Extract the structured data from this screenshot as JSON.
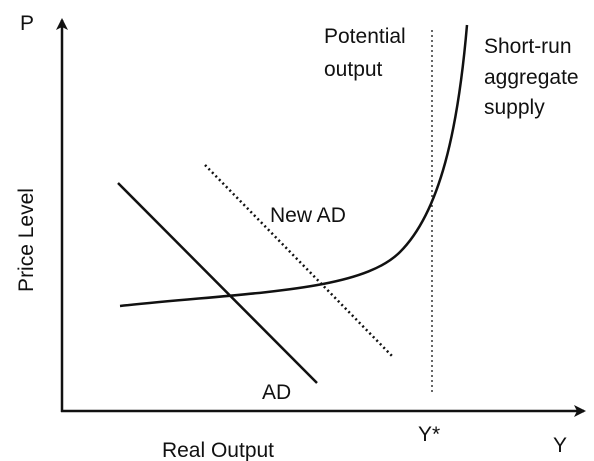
{
  "axes": {
    "y_label": "P",
    "x_label": "Y",
    "y_title": "Price Level",
    "x_title": "Real Output"
  },
  "curves": {
    "potential_output": [
      "Potential",
      "output"
    ],
    "sras": [
      "Short-run",
      "aggregate",
      "supply"
    ],
    "new_ad": "New AD",
    "ad": "AD"
  },
  "marker": "Y*"
}
